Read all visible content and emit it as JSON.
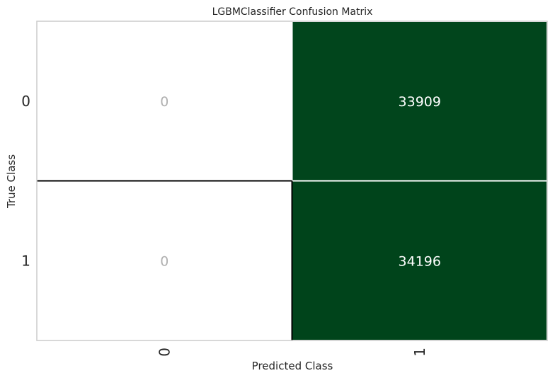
{
  "chart_data": {
    "type": "heatmap",
    "title": "LGBMClassifier Confusion Matrix",
    "xlabel": "Predicted Class",
    "ylabel": "True Class",
    "x_categories": [
      "0",
      "1"
    ],
    "y_categories": [
      "0",
      "1"
    ],
    "matrix": [
      [
        0,
        33909
      ],
      [
        0,
        34196
      ]
    ],
    "colors": {
      "high": "#00441b",
      "zero": "#ffffff",
      "zero_text": "#b0b0b0",
      "high_text": "#ffffff",
      "frame": "#cccccc",
      "zero_edge": "#000000"
    }
  }
}
